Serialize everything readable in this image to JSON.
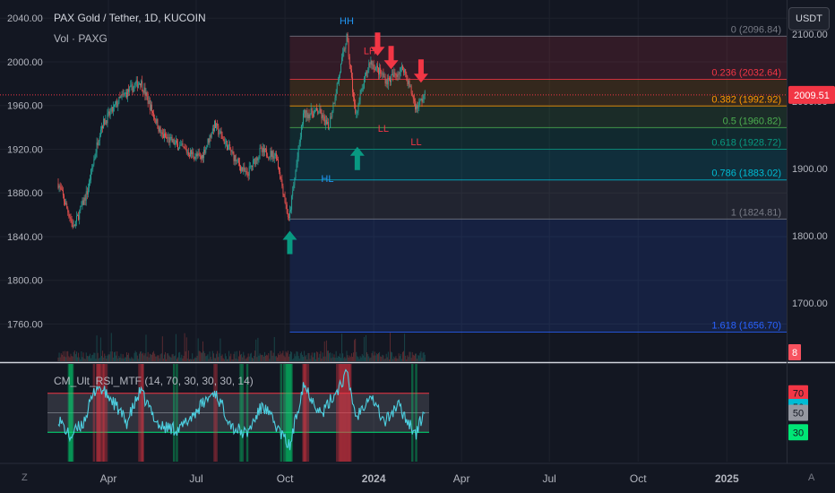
{
  "header": {
    "title": "PAX Gold / Tether, 1D, KUCOIN",
    "volume_label": "Vol · PAXG",
    "currency": "USDT"
  },
  "corner": {
    "left": "Z",
    "right": "A"
  },
  "colors": {
    "background": "#131722",
    "up": "#26a69a",
    "down": "#ef5350",
    "rsi_line": "#4dd0e1",
    "current_price_tag": "#f23645"
  },
  "chart_data": [
    {
      "type": "candlestick",
      "title": "PAX Gold / Tether, 1D, KUCOIN",
      "x_ticks": [
        "Apr",
        "Jul",
        "Oct",
        "2024",
        "Apr",
        "Jul",
        "Oct",
        "2025"
      ],
      "left_axis": {
        "ticks": [
          "2040.00",
          "2000.00",
          "1960.00",
          "1920.00",
          "1880.00",
          "1840.00",
          "1800.00",
          "1760.00"
        ],
        "ylim": [
          1730,
          2050
        ]
      },
      "right_axis": {
        "ticks": [
          "2100.00",
          "2000.00",
          "1900.00",
          "1800.00",
          "1700.00"
        ],
        "ylim": [
          1620,
          2140
        ]
      },
      "current_price": "2009.51",
      "volume_tag": "8",
      "approx_close_path": [
        {
          "x": "2023-02-08",
          "y": 1878
        },
        {
          "x": "2023-02-24",
          "y": 1812
        },
        {
          "x": "2023-03-10",
          "y": 1865
        },
        {
          "x": "2023-03-24",
          "y": 1962
        },
        {
          "x": "2023-04-14",
          "y": 2005
        },
        {
          "x": "2023-05-04",
          "y": 2030
        },
        {
          "x": "2023-05-26",
          "y": 1950
        },
        {
          "x": "2023-06-22",
          "y": 1925
        },
        {
          "x": "2023-07-06",
          "y": 1915
        },
        {
          "x": "2023-07-20",
          "y": 1965
        },
        {
          "x": "2023-08-10",
          "y": 1915
        },
        {
          "x": "2023-08-22",
          "y": 1890
        },
        {
          "x": "2023-09-05",
          "y": 1925
        },
        {
          "x": "2023-09-22",
          "y": 1920
        },
        {
          "x": "2023-10-05",
          "y": 1822
        },
        {
          "x": "2023-10-20",
          "y": 1980
        },
        {
          "x": "2023-11-05",
          "y": 1985
        },
        {
          "x": "2023-11-15",
          "y": 1960
        },
        {
          "x": "2023-12-04",
          "y": 2095
        },
        {
          "x": "2023-12-13",
          "y": 1980
        },
        {
          "x": "2023-12-28",
          "y": 2060
        },
        {
          "x": "2024-01-15",
          "y": 2030
        },
        {
          "x": "2024-02-01",
          "y": 2050
        },
        {
          "x": "2024-02-14",
          "y": 1990
        },
        {
          "x": "2024-02-23",
          "y": 2009.51
        }
      ],
      "fibonacci": [
        {
          "level": "0 (2096.84)",
          "value": 2096.84,
          "color": "#787b86"
        },
        {
          "level": "0.236 (2032.64)",
          "value": 2032.64,
          "color": "#f23645"
        },
        {
          "level": "0.382 (1992.92)",
          "value": 1992.92,
          "color": "#ff9800"
        },
        {
          "level": "0.5 (1960.82)",
          "value": 1960.82,
          "color": "#4caf50"
        },
        {
          "level": "0.618 (1928.72)",
          "value": 1928.72,
          "color": "#089981"
        },
        {
          "level": "0.786 (1883.02)",
          "value": 1883.02,
          "color": "#00bcd4"
        },
        {
          "level": "1 (1824.81)",
          "value": 1824.81,
          "color": "#787b86"
        },
        {
          "level": "1.618 (1656.70)",
          "value": 1656.7,
          "color": "#2962ff"
        }
      ],
      "annotations": [
        {
          "text": "HH",
          "x": "2023-12-04",
          "y": 2115,
          "color": "#2196f3"
        },
        {
          "text": "HL",
          "x": "2023-11-14",
          "y": 1880,
          "color": "#2196f3"
        },
        {
          "text": "LH",
          "x": "2023-12-28",
          "y": 2070,
          "color": "#f23645"
        },
        {
          "text": "LL",
          "x": "2024-01-11",
          "y": 1955,
          "color": "#f23645"
        },
        {
          "text": "LL",
          "x": "2024-02-14",
          "y": 1935,
          "color": "#f23645"
        }
      ],
      "arrows": [
        {
          "direction": "up",
          "x": "2023-10-06",
          "y": 1790,
          "color": "#089981"
        },
        {
          "direction": "up",
          "x": "2023-12-15",
          "y": 1915,
          "color": "#089981"
        },
        {
          "direction": "down",
          "x": "2024-01-05",
          "y": 2085,
          "color": "#f23645"
        },
        {
          "direction": "down",
          "x": "2024-01-19",
          "y": 2065,
          "color": "#f23645"
        },
        {
          "direction": "down",
          "x": "2024-02-19",
          "y": 2045,
          "color": "#f23645"
        }
      ]
    },
    {
      "type": "line",
      "title": "CM_Ult_RSI_MTF (14, 70, 30, 30, 30, 14)",
      "levels": [
        "70",
        "56",
        "50",
        "30"
      ],
      "ylim": [
        0,
        100
      ],
      "rsi_values": [
        {
          "x": "2023-02-08",
          "y": 45
        },
        {
          "x": "2023-02-20",
          "y": 25
        },
        {
          "x": "2023-03-06",
          "y": 40
        },
        {
          "x": "2023-03-20",
          "y": 78
        },
        {
          "x": "2023-04-04",
          "y": 64
        },
        {
          "x": "2023-04-20",
          "y": 40
        },
        {
          "x": "2023-05-04",
          "y": 72
        },
        {
          "x": "2023-05-24",
          "y": 36
        },
        {
          "x": "2023-06-14",
          "y": 33
        },
        {
          "x": "2023-07-04",
          "y": 55
        },
        {
          "x": "2023-07-20",
          "y": 72
        },
        {
          "x": "2023-08-08",
          "y": 35
        },
        {
          "x": "2023-08-22",
          "y": 28
        },
        {
          "x": "2023-09-08",
          "y": 58
        },
        {
          "x": "2023-09-26",
          "y": 30
        },
        {
          "x": "2023-10-06",
          "y": 15
        },
        {
          "x": "2023-10-20",
          "y": 80
        },
        {
          "x": "2023-11-08",
          "y": 48
        },
        {
          "x": "2023-11-22",
          "y": 70
        },
        {
          "x": "2023-12-04",
          "y": 90
        },
        {
          "x": "2023-12-14",
          "y": 45
        },
        {
          "x": "2023-12-28",
          "y": 70
        },
        {
          "x": "2024-01-12",
          "y": 40
        },
        {
          "x": "2024-01-26",
          "y": 58
        },
        {
          "x": "2024-02-14",
          "y": 28
        },
        {
          "x": "2024-02-23",
          "y": 54
        }
      ]
    }
  ]
}
